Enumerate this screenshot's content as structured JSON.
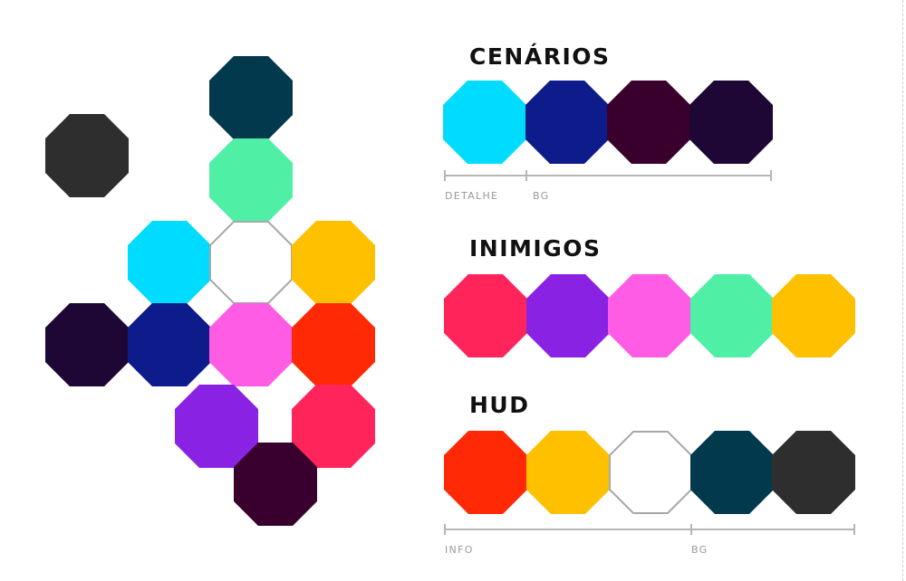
{
  "colors": {
    "dark_gray": "#2e2e2e",
    "dark_teal": "#03394d",
    "mint": "#4ff0a6",
    "cyan": "#00dcff",
    "white": "#ffffff",
    "amber": "#ffc000",
    "deep_purple": "#1e0735",
    "navy": "#0e1b8a",
    "pink": "#ff5ce6",
    "red_orange": "#ff2a05",
    "violet": "#8a22e3",
    "crimson": "#ff2459",
    "plum": "#3a002d",
    "outline_gray": "#a7a7a7"
  },
  "sections": {
    "cenarios": {
      "title": "CENÁRIOS",
      "swatches": [
        "cyan",
        "navy",
        "plum",
        "deep_purple"
      ],
      "labels": {
        "detail": "DETALHE",
        "bg": "BG"
      }
    },
    "inimigos": {
      "title": "INIMIGOS",
      "swatches": [
        "crimson",
        "violet",
        "pink",
        "mint",
        "amber"
      ]
    },
    "hud": {
      "title": "HUD",
      "swatches": [
        "red_orange",
        "amber",
        "white",
        "dark_teal",
        "dark_gray"
      ],
      "labels": {
        "info": "INFO",
        "bg": "BG"
      }
    }
  },
  "cluster": [
    "dark_gray",
    "dark_teal",
    "mint",
    "cyan",
    "white",
    "amber",
    "deep_purple",
    "navy",
    "pink",
    "red_orange",
    "violet",
    "crimson",
    "plum"
  ]
}
